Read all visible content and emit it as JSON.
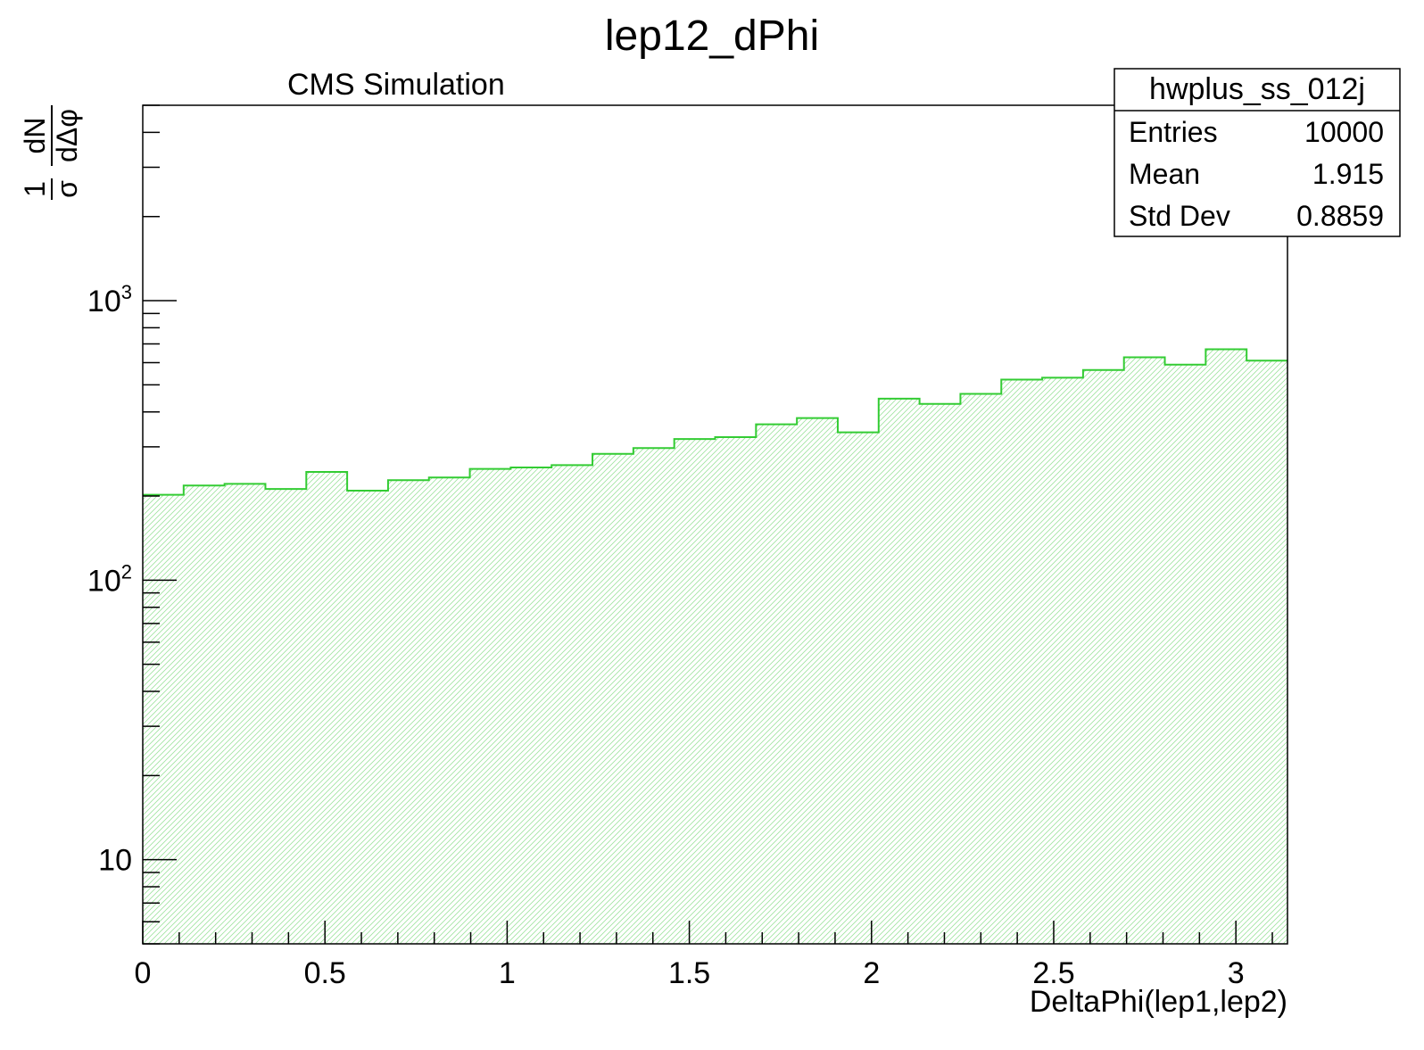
{
  "chart_data": {
    "type": "bar",
    "title": "lep12_dPhi",
    "label": "CMS Simulation",
    "xlabel": "DeltaPhi(lep1,lep2)",
    "ylabel": {
      "numerator_left": "1",
      "denominator_left": "σ",
      "numerator_right": "dN",
      "denominator_right": "dΔφ"
    },
    "xlim": [
      0,
      3.1416
    ],
    "ylim": [
      5,
      5000
    ],
    "yscale": "log",
    "x_ticks": [
      "0",
      "0.5",
      "1",
      "1.5",
      "2",
      "2.5",
      "3"
    ],
    "y_tick_labels": [
      {
        "value": 1000,
        "base": "10",
        "exp": "3"
      },
      {
        "value": 100,
        "base": "10",
        "exp": "2"
      },
      {
        "value": 10,
        "base": "10",
        "exp": ""
      }
    ],
    "bin_edges": [
      0,
      0.1122,
      0.2244,
      0.3366,
      0.4488,
      0.561,
      0.6732,
      0.7854,
      0.8976,
      1.0098,
      1.122,
      1.2342,
      1.3464,
      1.4586,
      1.5708,
      1.683,
      1.7952,
      1.9074,
      2.0196,
      2.1318,
      2.244,
      2.3562,
      2.4684,
      2.5806,
      2.6928,
      2.805,
      2.9172,
      3.0294,
      3.1416
    ],
    "values": [
      202,
      218,
      221,
      212,
      244,
      209,
      228,
      233,
      250,
      253,
      258,
      283,
      297,
      320,
      325,
      361,
      380,
      338,
      446,
      427,
      464,
      522,
      530,
      565,
      627,
      590,
      670,
      610
    ],
    "line_color": "#33cc33",
    "fill_color": "#33cc33",
    "fill_style": "hatched",
    "legend_position": "top-right",
    "stats_box": {
      "title": "hwplus_ss_012j",
      "rows": [
        {
          "label": "Entries",
          "value": "10000"
        },
        {
          "label": "Mean",
          "value": "1.915"
        },
        {
          "label": "Std Dev",
          "value": "0.8859"
        }
      ]
    }
  }
}
